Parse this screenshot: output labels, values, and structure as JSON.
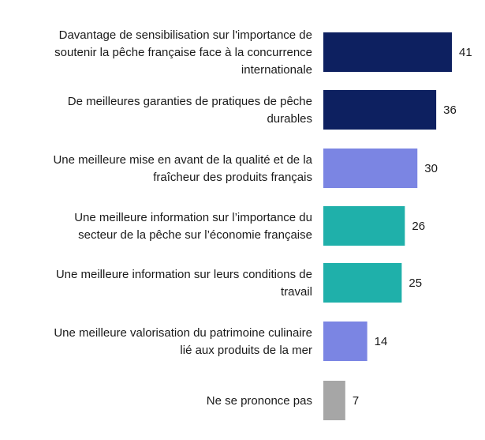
{
  "chart_data": {
    "type": "bar",
    "orientation": "horizontal",
    "categories": [
      [
        "Davantage de sensibilisation sur l'importance de",
        "soutenir la pêche française face à la concurrence",
        "internationale"
      ],
      [
        "De meilleures garanties de pratiques de pêche",
        "durables"
      ],
      [
        "Une meilleure mise en avant de la qualité et de la",
        "fraîcheur des produits français"
      ],
      [
        "Une meilleure information sur l’importance du",
        "secteur de la pêche sur l’économie française"
      ],
      [
        "Une meilleure information sur leurs conditions de",
        "travail"
      ],
      [
        "Une meilleure valorisation du patrimoine culinaire",
        "lié aux produits de la mer"
      ],
      [
        "Ne se prononce pas"
      ]
    ],
    "values": [
      41,
      36,
      30,
      26,
      25,
      14,
      7
    ],
    "value_labels": [
      "41",
      "36",
      "30",
      "26",
      "25",
      "14",
      "7"
    ],
    "colors": [
      "#0d2060",
      "#0d2060",
      "#7b85e3",
      "#1fb0aa",
      "#1fb0aa",
      "#7b85e3",
      "#a6a6a6"
    ],
    "xlim": [
      0,
      41
    ],
    "grid": false,
    "legend": "none",
    "title": "",
    "xlabel": "",
    "ylabel": ""
  }
}
